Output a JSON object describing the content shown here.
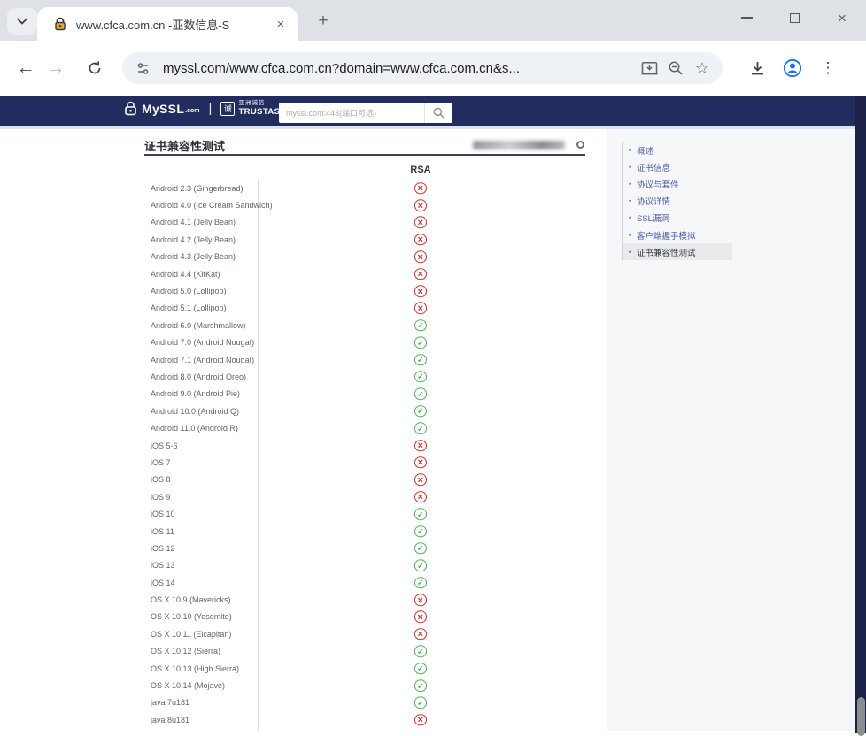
{
  "browser": {
    "tab_title": "www.cfca.com.cn -亚数信息-S",
    "url": "myssl.com/www.cfca.com.cn?domain=www.cfca.com.cn&s...",
    "new_tab_glyph": "+",
    "close_tab_glyph": "×",
    "back_glyph": "←",
    "forward_glyph": "→",
    "menu_glyph": "⋮",
    "window_close_glyph": "×"
  },
  "header": {
    "brand": "MySSL",
    "brand_suffix": ".com",
    "brand_sep": "|",
    "partner_box_glyph": "诚",
    "partner_cn": "亚洲诚信",
    "partner_en": "TRUSTASIA",
    "search_placeholder": "myssl.com:443(端口可选)"
  },
  "sidebar": {
    "items": [
      {
        "label": "概述",
        "active": false
      },
      {
        "label": "证书信息",
        "active": false
      },
      {
        "label": "协议与套件",
        "active": false
      },
      {
        "label": "协议详情",
        "active": false
      },
      {
        "label": "SSL漏洞",
        "active": false
      },
      {
        "label": "客户端握手模拟",
        "active": false
      },
      {
        "label": "证书兼容性测试",
        "active": true
      }
    ]
  },
  "main": {
    "section_title": "证书兼容性测试",
    "column_header": "RSA",
    "pass_glyph": "✓",
    "fail_glyph": "✕",
    "rows": [
      {
        "client": "Android 2.3 (Gingerbread)",
        "rsa": "fail"
      },
      {
        "client": "Android 4.0 (Ice Cream Sandwich)",
        "rsa": "fail"
      },
      {
        "client": "Android 4.1 (Jelly Bean)",
        "rsa": "fail"
      },
      {
        "client": "Android 4.2 (Jelly Bean)",
        "rsa": "fail"
      },
      {
        "client": "Android 4.3 (Jelly Bean)",
        "rsa": "fail"
      },
      {
        "client": "Android 4.4 (KitKat)",
        "rsa": "fail"
      },
      {
        "client": "Android 5.0 (Lollipop)",
        "rsa": "fail"
      },
      {
        "client": "Android 5.1 (Lollipop)",
        "rsa": "fail"
      },
      {
        "client": "Android 6.0 (Marshmallow)",
        "rsa": "pass"
      },
      {
        "client": "Android 7.0 (Android Nougat)",
        "rsa": "pass"
      },
      {
        "client": "Android 7.1 (Android Nougat)",
        "rsa": "pass"
      },
      {
        "client": "Android 8.0 (Android Oreo)",
        "rsa": "pass"
      },
      {
        "client": "Android 9.0 (Android Pie)",
        "rsa": "pass"
      },
      {
        "client": "Android 10.0 (Android Q)",
        "rsa": "pass"
      },
      {
        "client": "Android 11.0 (Android R)",
        "rsa": "pass"
      },
      {
        "client": "iOS 5-6",
        "rsa": "fail"
      },
      {
        "client": "iOS 7",
        "rsa": "fail"
      },
      {
        "client": "iOS 8",
        "rsa": "fail"
      },
      {
        "client": "iOS 9",
        "rsa": "fail"
      },
      {
        "client": "iOS 10",
        "rsa": "pass"
      },
      {
        "client": "iOS 11",
        "rsa": "pass"
      },
      {
        "client": "iOS 12",
        "rsa": "pass"
      },
      {
        "client": "iOS 13",
        "rsa": "pass"
      },
      {
        "client": "iOS 14",
        "rsa": "pass"
      },
      {
        "client": "OS X 10.9 (Mavericks)",
        "rsa": "fail"
      },
      {
        "client": "OS X 10.10 (Yosemite)",
        "rsa": "fail"
      },
      {
        "client": "OS X 10.11 (Elcapitan)",
        "rsa": "fail"
      },
      {
        "client": "OS X 10.12 (Sierra)",
        "rsa": "pass"
      },
      {
        "client": "OS X 10.13 (High Sierra)",
        "rsa": "pass"
      },
      {
        "client": "OS X 10.14 (Mojave)",
        "rsa": "pass"
      },
      {
        "client": "java 7u181",
        "rsa": "pass"
      },
      {
        "client": "java 8u181",
        "rsa": "fail"
      }
    ]
  },
  "colors": {
    "navy_header": "#222c5e",
    "link_blue": "#4a5bad",
    "fail_red": "#c4332d",
    "pass_green": "#53b156",
    "tabstrip_gray": "#dee1e6"
  }
}
